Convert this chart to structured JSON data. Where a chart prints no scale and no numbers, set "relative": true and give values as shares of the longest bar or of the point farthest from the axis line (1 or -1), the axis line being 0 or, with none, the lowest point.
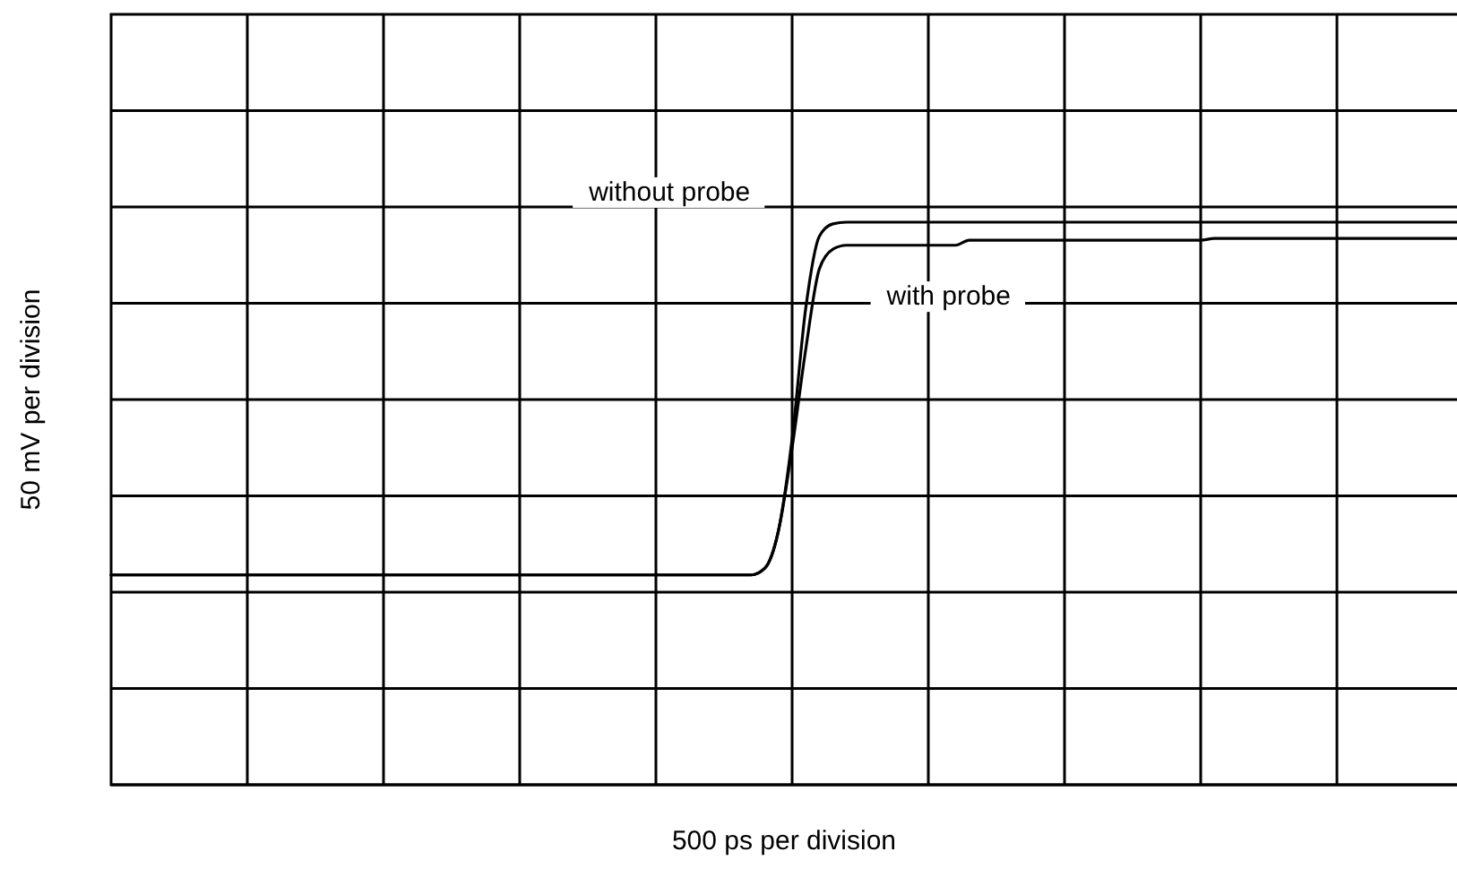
{
  "chart_data": {
    "type": "line",
    "relative": true,
    "grid": true,
    "xlabel": "500 ps per division",
    "ylabel": "50 mV per division",
    "categories": [
      null,
      null,
      null,
      null,
      null,
      null,
      null,
      null,
      null,
      null,
      null,
      null,
      null,
      null,
      null,
      null,
      null,
      null,
      null,
      null,
      null,
      null,
      null,
      null,
      null,
      null,
      null,
      null,
      null,
      null,
      null,
      null,
      null,
      null,
      null,
      null,
      null,
      null,
      null,
      null,
      null,
      null,
      null,
      null,
      null,
      null,
      null,
      null,
      null,
      null,
      null,
      null,
      null,
      null,
      null,
      null,
      null,
      null,
      null,
      null,
      null,
      null,
      null,
      null,
      null,
      null,
      null,
      null,
      null,
      null,
      null,
      null,
      null,
      null,
      null,
      null,
      null,
      null,
      null,
      null,
      null,
      null,
      null,
      null,
      null,
      null,
      null,
      null,
      null,
      null,
      null,
      null,
      null,
      null,
      null,
      null,
      null,
      null,
      null,
      null
    ],
    "series": [
      {
        "name": "without probe",
        "color": "#000000",
        "values": [
          0.373,
          0.373,
          0.373,
          0.373,
          0.373,
          0.373,
          0.373,
          0.373,
          0.373,
          0.373,
          0.373,
          0.373,
          0.373,
          0.373,
          0.373,
          0.373,
          0.373,
          0.373,
          0.373,
          0.373,
          0.373,
          0.373,
          0.373,
          0.373,
          0.373,
          0.373,
          0.373,
          0.373,
          0.373,
          0.373,
          0.373,
          0.373,
          0.373,
          0.373,
          0.373,
          0.373,
          0.373,
          0.373,
          0.373,
          0.373,
          0.373,
          0.373,
          0.373,
          0.373,
          0.373,
          0.373,
          0.373,
          0.373,
          0.385,
          0.452,
          0.615,
          0.847,
          0.975,
          0.997,
          1,
          1,
          1,
          1,
          1,
          1,
          1,
          1,
          1,
          1,
          1,
          1,
          1,
          1,
          1,
          1,
          1,
          1,
          1,
          1,
          1,
          1,
          1,
          1,
          1,
          1,
          1,
          1,
          1,
          1,
          1,
          1,
          1,
          1,
          1,
          1,
          1,
          1,
          1,
          1,
          1,
          1,
          1,
          1,
          1,
          1
        ]
      },
      {
        "name": "with probe",
        "color": "#000000",
        "values": [
          0.373,
          0.373,
          0.373,
          0.373,
          0.373,
          0.373,
          0.373,
          0.373,
          0.373,
          0.373,
          0.373,
          0.373,
          0.373,
          0.373,
          0.373,
          0.373,
          0.373,
          0.373,
          0.373,
          0.373,
          0.373,
          0.373,
          0.373,
          0.373,
          0.373,
          0.373,
          0.373,
          0.373,
          0.373,
          0.373,
          0.373,
          0.373,
          0.373,
          0.373,
          0.373,
          0.373,
          0.373,
          0.373,
          0.373,
          0.373,
          0.373,
          0.373,
          0.373,
          0.373,
          0.373,
          0.373,
          0.373,
          0.373,
          0.385,
          0.452,
          0.599,
          0.774,
          0.917,
          0.952,
          0.959,
          0.959,
          0.959,
          0.959,
          0.959,
          0.959,
          0.959,
          0.959,
          0.959,
          0.968,
          0.968,
          0.968,
          0.968,
          0.968,
          0.968,
          0.968,
          0.968,
          0.968,
          0.968,
          0.968,
          0.968,
          0.968,
          0.968,
          0.968,
          0.968,
          0.968,
          0.968,
          0.971,
          0.971,
          0.971,
          0.971,
          0.971,
          0.971,
          0.971,
          0.971,
          0.971,
          0.971,
          0.971,
          0.971,
          0.971,
          0.971,
          0.971,
          0.971,
          0.971,
          0.971,
          0.971
        ]
      }
    ]
  }
}
